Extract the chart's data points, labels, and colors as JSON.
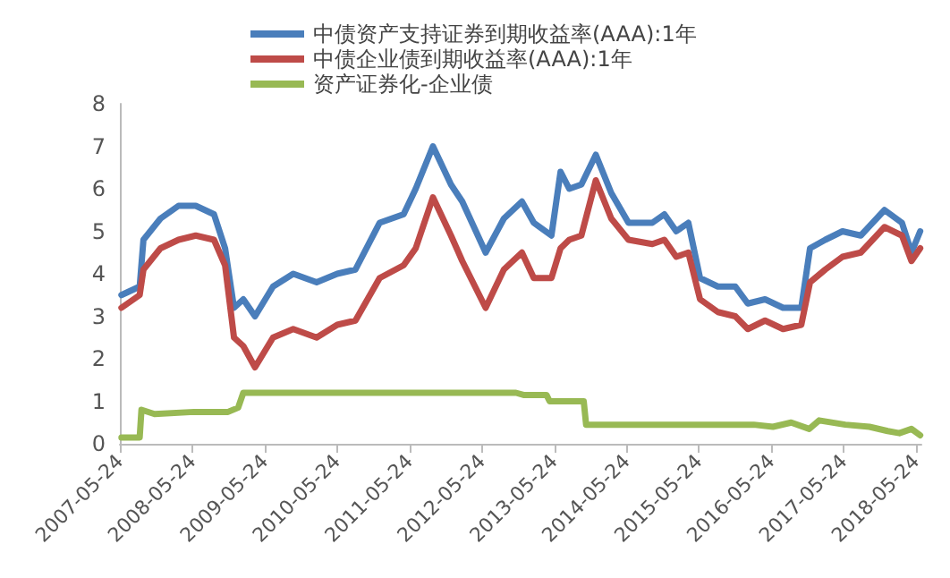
{
  "chart_data": {
    "type": "line",
    "ylim": [
      0,
      8
    ],
    "yticks": [
      0,
      1,
      2,
      3,
      4,
      5,
      6,
      7,
      8
    ],
    "xlim": [
      "2007-05-24",
      "2018-06-20"
    ],
    "xticks": [
      "2007-05-24",
      "2008-05-24",
      "2009-05-24",
      "2010-05-24",
      "2011-05-24",
      "2012-05-24",
      "2013-05-24",
      "2014-05-24",
      "2015-05-24",
      "2016-05-24",
      "2017-05-24",
      "2018-05-24"
    ],
    "grid": false,
    "legend": "top",
    "marker": "none",
    "line_style": "solid",
    "series": [
      {
        "name": "中债资产支持证券到期收益率(AAA):1年",
        "color": "#4a7ebb",
        "x": [
          "2007-06-01",
          "2007-09-01",
          "2007-09-20",
          "2007-12-15",
          "2008-03-15",
          "2008-06-10",
          "2008-09-10",
          "2008-11-05",
          "2008-12-20",
          "2009-02-05",
          "2009-04-05",
          "2009-07-05",
          "2009-10-15",
          "2010-02-10",
          "2010-05-25",
          "2010-08-25",
          "2010-12-25",
          "2011-04-25",
          "2011-06-25",
          "2011-09-20",
          "2011-12-20",
          "2012-02-15",
          "2012-06-12",
          "2012-09-12",
          "2012-12-12",
          "2013-02-10",
          "2013-05-10",
          "2013-06-25",
          "2013-08-08",
          "2013-10-08",
          "2013-12-20",
          "2014-03-08",
          "2014-06-03",
          "2014-10-01",
          "2014-12-01",
          "2015-01-30",
          "2015-04-01",
          "2015-05-30",
          "2015-08-28",
          "2015-11-24",
          "2016-01-26",
          "2016-04-22",
          "2016-07-22",
          "2016-10-22",
          "2016-12-05",
          "2017-02-20",
          "2017-05-18",
          "2017-08-18",
          "2017-12-16",
          "2018-03-14",
          "2018-05-01",
          "2018-06-14"
        ],
        "values": [
          3.5,
          3.7,
          4.8,
          5.3,
          5.6,
          5.6,
          5.4,
          4.6,
          3.2,
          3.4,
          3.0,
          3.7,
          4.0,
          3.8,
          4.0,
          4.1,
          5.2,
          5.4,
          6.0,
          7.0,
          6.1,
          5.7,
          4.5,
          5.3,
          5.7,
          5.2,
          4.9,
          6.4,
          6.0,
          6.1,
          6.8,
          5.9,
          5.2,
          5.2,
          5.4,
          5.0,
          5.2,
          3.9,
          3.7,
          3.7,
          3.3,
          3.4,
          3.2,
          3.2,
          4.6,
          4.8,
          5.0,
          4.9,
          5.5,
          5.2,
          4.5,
          5.0
        ]
      },
      {
        "name": "中债企业债到期收益率(AAA):1年",
        "color": "#be4b48",
        "x": [
          "2007-06-01",
          "2007-09-01",
          "2007-09-20",
          "2007-12-15",
          "2008-03-15",
          "2008-06-10",
          "2008-09-10",
          "2008-11-05",
          "2008-12-20",
          "2009-02-05",
          "2009-04-05",
          "2009-07-05",
          "2009-10-15",
          "2010-02-10",
          "2010-05-25",
          "2010-08-25",
          "2010-12-25",
          "2011-04-25",
          "2011-06-25",
          "2011-09-20",
          "2011-12-20",
          "2012-02-15",
          "2012-06-12",
          "2012-09-12",
          "2012-12-12",
          "2013-02-10",
          "2013-05-10",
          "2013-06-25",
          "2013-08-08",
          "2013-10-08",
          "2013-12-20",
          "2014-03-08",
          "2014-06-03",
          "2014-10-01",
          "2014-12-01",
          "2015-01-30",
          "2015-04-01",
          "2015-05-30",
          "2015-08-28",
          "2015-11-24",
          "2016-01-26",
          "2016-04-22",
          "2016-07-22",
          "2016-10-22",
          "2016-12-05",
          "2017-02-20",
          "2017-05-18",
          "2017-08-18",
          "2017-12-16",
          "2018-03-14",
          "2018-05-01",
          "2018-06-14"
        ],
        "values": [
          3.2,
          3.5,
          4.1,
          4.6,
          4.8,
          4.9,
          4.8,
          4.2,
          2.5,
          2.3,
          1.8,
          2.5,
          2.7,
          2.5,
          2.8,
          2.9,
          3.9,
          4.2,
          4.6,
          5.8,
          4.9,
          4.3,
          3.2,
          4.1,
          4.5,
          3.9,
          3.9,
          4.6,
          4.8,
          4.9,
          6.2,
          5.3,
          4.8,
          4.7,
          4.8,
          4.4,
          4.5,
          3.4,
          3.1,
          3.0,
          2.7,
          2.9,
          2.7,
          2.8,
          3.8,
          4.1,
          4.4,
          4.5,
          5.1,
          4.9,
          4.3,
          4.6
        ]
      },
      {
        "name": "资产证券化-企业债",
        "color": "#98b954",
        "x": [
          "2007-06-01",
          "2007-09-01",
          "2007-09-10",
          "2007-11-15",
          "2008-06-01",
          "2008-11-20",
          "2009-01-10",
          "2009-02-05",
          "2012-11-12",
          "2012-12-20",
          "2013-04-15",
          "2013-05-01",
          "2013-10-20",
          "2013-11-01",
          "2016-02-25",
          "2016-06-01",
          "2016-09-01",
          "2016-12-01",
          "2017-01-20",
          "2017-06-01",
          "2017-10-01",
          "2018-01-01",
          "2018-03-01",
          "2018-05-01",
          "2018-06-14"
        ],
        "values": [
          0.15,
          0.15,
          0.8,
          0.7,
          0.75,
          0.75,
          0.85,
          1.2,
          1.2,
          1.15,
          1.15,
          1.0,
          1.0,
          0.45,
          0.45,
          0.4,
          0.5,
          0.35,
          0.55,
          0.45,
          0.4,
          0.3,
          0.25,
          0.35,
          0.2
        ]
      }
    ]
  }
}
